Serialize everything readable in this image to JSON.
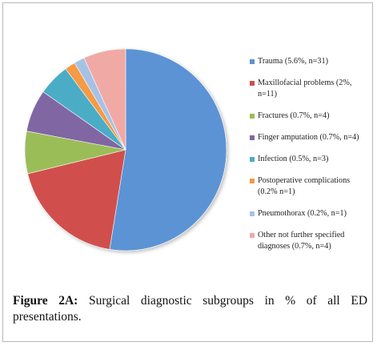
{
  "chart_data": {
    "type": "pie",
    "series": [
      {
        "name": "Trauma (5.6%, n=31)",
        "value": 31,
        "color": "#5b93d5"
      },
      {
        "name": "Maxillofacial problems (2%, n=11)",
        "value": 11,
        "color": "#d0504d"
      },
      {
        "name": "Fractures (0.7%, n=4)",
        "value": 4,
        "color": "#9bbd59"
      },
      {
        "name": "Finger amputation (0.7%, n=4)",
        "value": 4,
        "color": "#8066a2"
      },
      {
        "name": "Infection (0.5%, n=3)",
        "value": 3,
        "color": "#4bacc6"
      },
      {
        "name": "Postoperative complications (0.2% n=1)",
        "value": 1,
        "color": "#f59a45"
      },
      {
        "name": "Pneumothorax (0.2%, n=1)",
        "value": 1,
        "color": "#a5c2e6"
      },
      {
        "name": "Other not further specified diagnoses (0.7%, n=4)",
        "value": 4,
        "color": "#f1a9a6"
      }
    ],
    "start_angle_deg": 0,
    "legend_position": "right"
  },
  "legend": [
    {
      "label": "Trauma (5.6%, n=31)"
    },
    {
      "label": "Maxillofacial problems (2%, n=11)"
    },
    {
      "label": "Fractures (0.7%, n=4)"
    },
    {
      "label": "Finger amputation (0.7%, n=4)"
    },
    {
      "label": "Infection (0.5%, n=3)"
    },
    {
      "label": "Postoperative complications (0.2% n=1)"
    },
    {
      "label": "Pneumothorax (0.2%, n=1)"
    },
    {
      "label": "Other not further specified diagnoses (0.7%, n=4)"
    }
  ],
  "caption": {
    "lead": "Figure 2A:",
    "text": " Surgical diagnostic subgroups in % of all ED presentations."
  }
}
